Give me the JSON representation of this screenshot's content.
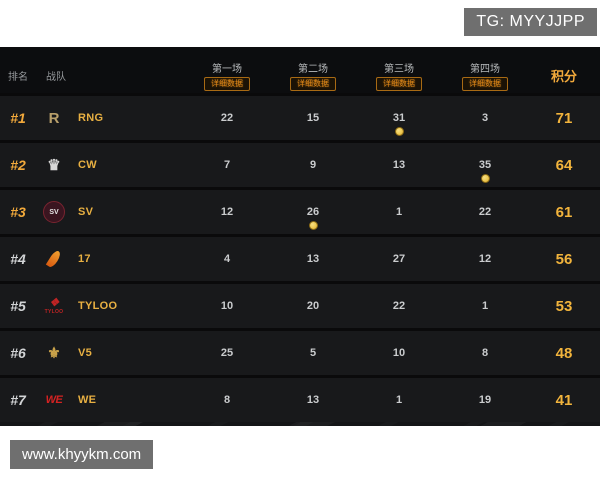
{
  "overlays": {
    "tg_label": "TG: MYYJJPP",
    "site_label": "www.khyykm.com"
  },
  "header": {
    "rank_label": "排名",
    "team_label": "战队",
    "points_label": "积分",
    "matches": [
      {
        "label": "第一场",
        "badge": "详细数据"
      },
      {
        "label": "第二场",
        "badge": "详细数据"
      },
      {
        "label": "第三场",
        "badge": "详细数据"
      },
      {
        "label": "第四场",
        "badge": "详细数据"
      }
    ]
  },
  "rows": [
    {
      "rank": "#1",
      "team": "RNG",
      "scores": [
        22,
        15,
        31,
        3
      ],
      "points": 71,
      "medal_match": 3,
      "logo": {
        "kind": "text",
        "glyph": "R",
        "color": "#b9a06b"
      }
    },
    {
      "rank": "#2",
      "team": "CW",
      "scores": [
        7,
        9,
        13,
        35
      ],
      "points": 64,
      "medal_match": 4,
      "logo": {
        "kind": "text",
        "glyph": "♛",
        "color": "#d8d8d8"
      }
    },
    {
      "rank": "#3",
      "team": "SV",
      "scores": [
        12,
        26,
        1,
        22
      ],
      "points": 61,
      "medal_match": 2,
      "logo": {
        "kind": "circle",
        "glyph": "SV",
        "color": "#3a1520",
        "border": "#7a2430"
      }
    },
    {
      "rank": "#4",
      "team": "17",
      "scores": [
        4,
        13,
        27,
        12
      ],
      "points": 56,
      "medal_match": 0,
      "logo": {
        "kind": "flame",
        "glyph": "",
        "color": "#e06a1e"
      }
    },
    {
      "rank": "#5",
      "team": "TYLOO",
      "scores": [
        10,
        20,
        22,
        1
      ],
      "points": 53,
      "medal_match": 0,
      "logo": {
        "kind": "word",
        "glyph": "❖",
        "sub": "TYLOO",
        "color": "#c02424"
      }
    },
    {
      "rank": "#6",
      "team": "V5",
      "scores": [
        25,
        5,
        10,
        8
      ],
      "points": 48,
      "medal_match": 0,
      "logo": {
        "kind": "text",
        "glyph": "⚜",
        "color": "#c9a24a"
      }
    },
    {
      "rank": "#7",
      "team": "WE",
      "scores": [
        8,
        13,
        1,
        19
      ],
      "points": 41,
      "medal_match": 0,
      "logo": {
        "kind": "word",
        "glyph": "WE",
        "sub": "",
        "color": "#d42222"
      }
    }
  ],
  "colors": {
    "accent_gold": "#f2a93b",
    "score_text": "#caccce",
    "rank_normal": "#d2d4d6",
    "badge_orange": "#e08818",
    "medal_gold": "#edc84f",
    "panel_bg": "#141517",
    "header_bg": "#0c0d0f",
    "row_bg": "#18191b",
    "overlay_gray": "#6f6f6f"
  }
}
